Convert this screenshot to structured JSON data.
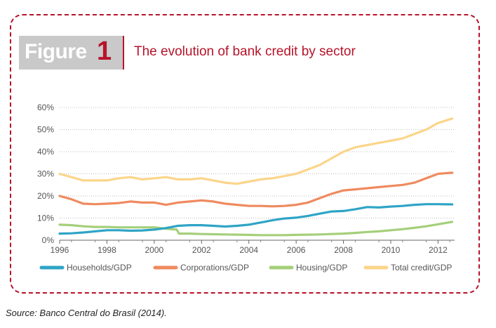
{
  "figure": {
    "word": "Figure",
    "number": "1",
    "title": "The evolution of bank credit by sector"
  },
  "source": "Source: Banco Central do Brasil (2014).",
  "colors": {
    "accent": "#b7132a",
    "households": "#2fa4c6",
    "corporations": "#ef8a5f",
    "housing": "#a5cf7a",
    "total": "#fbd58a"
  },
  "chart_data": {
    "type": "line",
    "title": "",
    "xlabel": "",
    "ylabel": "",
    "xlim": [
      1996,
      2012.7
    ],
    "ylim": [
      0,
      60
    ],
    "x_ticks": [
      1996,
      1998,
      2000,
      2002,
      2004,
      2006,
      2008,
      2010,
      2012
    ],
    "y_ticks": [
      0,
      10,
      20,
      30,
      40,
      50,
      60
    ],
    "y_tick_labels": [
      "0%",
      "10%",
      "20%",
      "30%",
      "40%",
      "50%",
      "60%"
    ],
    "grid": "horizontal dotted",
    "legend_position": "bottom",
    "series": [
      {
        "name": "Households/GDP",
        "color": "#2fa4c6",
        "x": [
          1996,
          1996.5,
          1997,
          1997.5,
          1998,
          1998.5,
          1999,
          1999.5,
          2000,
          2000.5,
          2001,
          2001.5,
          2002,
          2002.5,
          2003,
          2003.5,
          2004,
          2004.5,
          2005,
          2005.5,
          2006,
          2006.5,
          2007,
          2007.5,
          2008,
          2008.5,
          2009,
          2009.5,
          2010,
          2010.5,
          2011,
          2011.5,
          2012,
          2012.6
        ],
        "y": [
          3,
          3.1,
          3.5,
          4,
          4.5,
          4.5,
          4.3,
          4.4,
          4.8,
          5.5,
          6.5,
          6.8,
          6.8,
          6.5,
          6.2,
          6.5,
          7,
          8,
          9,
          9.8,
          10.2,
          11,
          12,
          13,
          13.2,
          14,
          15,
          14.8,
          15.2,
          15.5,
          16,
          16.3,
          16.3,
          16.2
        ]
      },
      {
        "name": "Corporations/GDP",
        "color": "#ef8a5f",
        "x": [
          1996,
          1996.5,
          1997,
          1997.5,
          1998,
          1998.5,
          1999,
          1999.5,
          2000,
          2000.5,
          2001,
          2001.5,
          2002,
          2002.5,
          2003,
          2003.5,
          2004,
          2004.5,
          2005,
          2005.5,
          2006,
          2006.5,
          2007,
          2007.5,
          2008,
          2008.5,
          2009,
          2009.5,
          2010,
          2010.5,
          2011,
          2011.5,
          2012,
          2012.6
        ],
        "y": [
          20,
          18.5,
          16.5,
          16.3,
          16.5,
          16.8,
          17.5,
          17,
          17,
          16,
          17,
          17.5,
          18,
          17.5,
          16.5,
          16,
          15.5,
          15.5,
          15.3,
          15.5,
          16,
          17,
          19,
          21,
          22.5,
          23,
          23.5,
          24,
          24.5,
          25,
          26,
          28,
          30,
          30.5
        ]
      },
      {
        "name": "Housing/GDP",
        "color": "#a5cf7a",
        "x": [
          1996,
          1996.5,
          1997,
          1997.5,
          1998,
          1998.5,
          1999,
          1999.5,
          2000,
          2000.5,
          2000.95,
          2001.05,
          2001.5,
          2002,
          2002.5,
          2003,
          2003.5,
          2004,
          2004.5,
          2005,
          2005.5,
          2006,
          2006.5,
          2007,
          2007.5,
          2008,
          2008.5,
          2009,
          2009.5,
          2010,
          2010.5,
          2011,
          2011.5,
          2012,
          2012.6
        ],
        "y": [
          7,
          6.8,
          6.3,
          6,
          6,
          5.8,
          5.8,
          5.8,
          5.8,
          5.2,
          4.8,
          3,
          3,
          2.8,
          2.7,
          2.6,
          2.5,
          2.4,
          2.3,
          2.3,
          2.3,
          2.4,
          2.5,
          2.6,
          2.8,
          3,
          3.3,
          3.7,
          4,
          4.5,
          5,
          5.6,
          6.3,
          7.2,
          8.3
        ]
      },
      {
        "name": "Total credit/GDP",
        "color": "#fbd58a",
        "x": [
          1996,
          1996.5,
          1997,
          1997.5,
          1998,
          1998.5,
          1999,
          1999.5,
          2000,
          2000.5,
          2001,
          2001.5,
          2002,
          2002.5,
          2003,
          2003.5,
          2004,
          2004.5,
          2005,
          2005.5,
          2006,
          2006.5,
          2007,
          2007.5,
          2008,
          2008.5,
          2009,
          2009.5,
          2010,
          2010.5,
          2011,
          2011.5,
          2012,
          2012.6
        ],
        "y": [
          30,
          28.5,
          27,
          27,
          27,
          28,
          28.5,
          27.5,
          28,
          28.5,
          27.5,
          27.5,
          28,
          27,
          26,
          25.5,
          26.5,
          27.5,
          28,
          29,
          30,
          32,
          34,
          37,
          40,
          42,
          43,
          44,
          45,
          46,
          48,
          50,
          53,
          55
        ]
      }
    ]
  }
}
